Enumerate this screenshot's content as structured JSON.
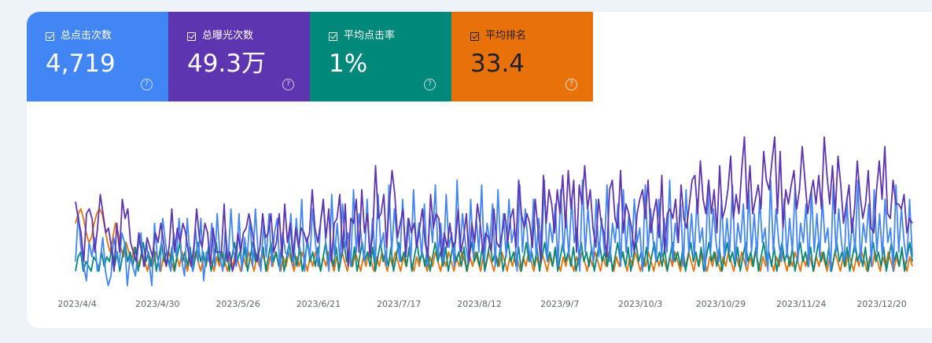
{
  "metrics": [
    {
      "label": "总点击次数",
      "value": "4,719",
      "color": "#4285f4"
    },
    {
      "label": "总曝光次数",
      "value": "49.3万",
      "color": "#5e35b1"
    },
    {
      "label": "平均点击率",
      "value": "1%",
      "color": "#00897b"
    },
    {
      "label": "平均排名",
      "value": "33.4",
      "color": "#e8710a"
    }
  ],
  "help_glyph": "?",
  "chart_data": {
    "type": "line",
    "x_tick_labels": [
      "2023/4/4",
      "2023/4/30",
      "2023/5/26",
      "2023/6/21",
      "2023/7/17",
      "2023/8/12",
      "2023/9/7",
      "2023/10/3",
      "2023/10/29",
      "2023/11/24",
      "2023/12/20"
    ],
    "x_range": [
      "2023/4/4",
      "2023/12/31"
    ],
    "grid": false,
    "series": [
      {
        "name": "总曝光次数",
        "color": "#5e35b1",
        "values": [
          65,
          58,
          52,
          40,
          60,
          62,
          58,
          44,
          54,
          68,
          60,
          52,
          54,
          46,
          36,
          56,
          44,
          66,
          58,
          62,
          48,
          44,
          40,
          52,
          44,
          38,
          50,
          46,
          42,
          52,
          48,
          56,
          48,
          38,
          46,
          62,
          44,
          54,
          48,
          56,
          52,
          44,
          38,
          46,
          62,
          50,
          46,
          56,
          52,
          38,
          54,
          44,
          44,
          44,
          64,
          40,
          44,
          36,
          40,
          52,
          44,
          52,
          54,
          60,
          54,
          46,
          40,
          46,
          60,
          50,
          52,
          60,
          44,
          48,
          60,
          42,
          64,
          48,
          56,
          42,
          54,
          46,
          54,
          52,
          48,
          52,
          70,
          54,
          48,
          56,
          66,
          50,
          62,
          40,
          56,
          58,
          68,
          44,
          64,
          38,
          58,
          56,
          66,
          44,
          70,
          52,
          60,
          42,
          52,
          80,
          58,
          60,
          68,
          46,
          64,
          78,
          68,
          50,
          56,
          62,
          42,
          58,
          52,
          56,
          46,
          54,
          62,
          48,
          42,
          68,
          54,
          60,
          58,
          42,
          52,
          46,
          56,
          46,
          48,
          62,
          44,
          50,
          60,
          40,
          56,
          48,
          64,
          56,
          44,
          52,
          50,
          44,
          62,
          48,
          46,
          52,
          60,
          48,
          58,
          62,
          46,
          74,
          60,
          54,
          60,
          56,
          46,
          66,
          54,
          40,
          76,
          56,
          70,
          64,
          52,
          70,
          60,
          76,
          54,
          78,
          62,
          74,
          44,
          72,
          64,
          80,
          62,
          70,
          54,
          46,
          66,
          56,
          52,
          42,
          70,
          74,
          58,
          54,
          78,
          52,
          64,
          60,
          54,
          44,
          60,
          66,
          70,
          58,
          74,
          52,
          60,
          66,
          50,
          76,
          44,
          60,
          62,
          58,
          66,
          48,
          72,
          58,
          54,
          64,
          74,
          76,
          60,
          82,
          66,
          60,
          74,
          60,
          70,
          52,
          80,
          58,
          62,
          70,
          84,
          58,
          68,
          60,
          78,
          92,
          62,
          80,
          60,
          66,
          72,
          62,
          86,
          74,
          70,
          82,
          92,
          60,
          86,
          54,
          70,
          64,
          72,
          78,
          62,
          70,
          88,
          74,
          60,
          68,
          74,
          64,
          76,
          62,
          92,
          76,
          64,
          80,
          60,
          84,
          72,
          56,
          64,
          72,
          52,
          62,
          82,
          68,
          58,
          64,
          78,
          54,
          52,
          70,
          82,
          66,
          88,
          60,
          58,
          74,
          64,
          64,
          62,
          68,
          52,
          58,
          56
        ],
        "y_scale": {
          "min": 30,
          "max": 95
        }
      },
      {
        "name": "总点击次数",
        "color": "#4285f4",
        "values": [
          40,
          60,
          46,
          38,
          32,
          48,
          42,
          50,
          36,
          40,
          50,
          36,
          30,
          34,
          50,
          44,
          38,
          52,
          48,
          30,
          42,
          38,
          34,
          46,
          52,
          38,
          48,
          40,
          30,
          56,
          42,
          36,
          58,
          48,
          40,
          36,
          52,
          42,
          58,
          40,
          34,
          58,
          42,
          36,
          54,
          40,
          58,
          32,
          44,
          40,
          56,
          38,
          60,
          42,
          36,
          54,
          40,
          62,
          44,
          38,
          60,
          36,
          50,
          42,
          58,
          38,
          62,
          44,
          36,
          56,
          42,
          60,
          38,
          52,
          58,
          36,
          52,
          44,
          42,
          60,
          38,
          58,
          44,
          66,
          36,
          50,
          42,
          62,
          48,
          38,
          58,
          64,
          44,
          36,
          68,
          42,
          56,
          40,
          64,
          46,
          52,
          38,
          70,
          44,
          60,
          48,
          40,
          66,
          42,
          58,
          40,
          68,
          46,
          52,
          38,
          72,
          44,
          62,
          48,
          40,
          66,
          44,
          58,
          40,
          70,
          46,
          56,
          42,
          64,
          38,
          60,
          48,
          72,
          42,
          56,
          40,
          68,
          46,
          52,
          38,
          74,
          44,
          60,
          48,
          40,
          66,
          42,
          58,
          44,
          72,
          40,
          56,
          48,
          64,
          38,
          70,
          44,
          60,
          42,
          66,
          48,
          54,
          36,
          72,
          44,
          62,
          48,
          40,
          66,
          42,
          58,
          44,
          74,
          40,
          56,
          48,
          64,
          38,
          70,
          44,
          60,
          42,
          66,
          48,
          54,
          36,
          74,
          44,
          62,
          48,
          40,
          66,
          42,
          58,
          44,
          72,
          40,
          56,
          48,
          64,
          38,
          70,
          44,
          60,
          42,
          66,
          48,
          54,
          36,
          72,
          44,
          62,
          48,
          40,
          66,
          42,
          58,
          44,
          74,
          40,
          56,
          48,
          64,
          38,
          70,
          44,
          60,
          42,
          66,
          48,
          54,
          36,
          72,
          44,
          62,
          48,
          40,
          66,
          42,
          58,
          44,
          72,
          40,
          56,
          48,
          64,
          38,
          70,
          44,
          60,
          42,
          66,
          48,
          54,
          36,
          74,
          44,
          62,
          48,
          40,
          66,
          42,
          58,
          44,
          72,
          40,
          56,
          48,
          64,
          38,
          70,
          44,
          60,
          42,
          66,
          48,
          54,
          36,
          72,
          44,
          62,
          48,
          40,
          66,
          42,
          58,
          44,
          74,
          40,
          56,
          48,
          64,
          38,
          70,
          44,
          60,
          42,
          66,
          48,
          54,
          36,
          72,
          44,
          62,
          48,
          40,
          66,
          42
        ],
        "y_scale": {
          "min": 30,
          "max": 95
        }
      },
      {
        "name": "平均点击率",
        "color": "#00897b",
        "values": [
          36,
          42,
          44,
          36,
          40,
          38,
          36,
          42,
          40,
          36,
          44,
          38,
          42,
          40,
          46,
          38,
          44,
          36,
          42,
          48,
          40,
          44,
          38,
          46,
          36,
          42,
          48,
          40,
          44,
          38,
          46,
          36,
          42,
          48,
          40,
          44,
          38,
          46,
          36,
          42,
          48,
          40,
          44,
          38,
          46,
          36,
          42,
          48,
          40,
          44,
          38,
          46,
          36,
          42,
          48,
          40,
          44,
          38,
          46,
          36,
          42,
          48,
          40,
          44,
          38,
          46,
          36,
          42,
          48,
          40,
          44,
          38,
          46,
          36,
          42,
          48,
          40,
          44,
          38,
          46,
          36,
          42,
          48,
          40,
          44,
          38,
          46,
          36,
          42,
          48,
          40,
          44,
          38,
          46,
          36,
          42,
          48,
          40,
          44,
          38,
          46,
          36,
          42,
          48,
          40,
          44,
          38,
          46,
          36,
          42,
          48,
          40,
          44,
          38,
          46,
          36,
          42,
          48,
          40,
          44,
          38,
          46,
          36,
          42,
          48,
          40,
          44,
          38,
          46,
          36,
          42,
          48,
          40,
          44,
          38,
          46,
          36,
          42,
          48,
          40,
          44,
          38,
          46,
          36,
          42,
          48,
          40,
          44,
          38,
          46,
          36,
          42,
          48,
          40,
          44,
          38,
          46,
          36,
          42,
          48,
          40,
          44,
          38,
          46,
          36,
          42,
          48,
          40,
          44,
          38,
          46,
          36,
          42,
          48,
          40,
          44,
          38,
          46,
          36,
          42,
          48,
          40,
          44,
          38,
          46,
          36,
          42,
          48,
          40,
          44,
          38,
          46,
          36,
          42,
          48,
          40,
          44,
          38,
          46,
          36,
          42,
          48,
          40,
          44,
          38,
          46,
          36,
          42,
          48,
          40,
          44,
          38,
          46,
          36,
          42,
          48,
          40,
          44,
          38,
          46,
          36,
          42,
          48,
          40,
          44,
          38,
          46,
          36,
          42,
          48,
          40,
          44,
          38,
          46,
          36,
          42,
          48,
          40,
          44,
          38,
          46,
          36,
          42,
          48,
          40,
          44,
          38,
          46,
          36,
          42,
          48,
          40,
          44,
          38,
          46,
          36,
          42,
          48,
          40,
          44,
          38,
          46,
          36,
          42,
          48,
          40,
          44,
          38,
          46,
          36,
          42,
          48,
          40,
          44,
          38,
          46,
          36,
          42,
          48,
          40,
          44,
          38,
          46,
          36,
          42,
          48,
          40,
          44,
          38,
          46,
          36,
          42,
          48,
          40,
          44,
          38,
          46,
          36,
          42,
          48,
          40,
          44,
          38,
          46,
          36,
          42,
          48,
          40,
          44,
          38,
          46,
          36,
          42,
          48,
          40,
          44,
          38,
          46,
          36,
          42,
          48,
          40
        ],
        "y_scale": {
          "min": 30,
          "max": 95
        }
      },
      {
        "name": "平均排名",
        "color": "#e8710a",
        "values": [
          56,
          60,
          62,
          58,
          52,
          48,
          50,
          56,
          60,
          62,
          60,
          54,
          48,
          44,
          50,
          56,
          52,
          46,
          42,
          48,
          44,
          40,
          46,
          42,
          38,
          44,
          40,
          36,
          42,
          38,
          44,
          40,
          36,
          42,
          38,
          44,
          40,
          36,
          42,
          38,
          44,
          40,
          36,
          42,
          38,
          44,
          40,
          36,
          42,
          38,
          44,
          40,
          36,
          42,
          38,
          44,
          40,
          36,
          42,
          38,
          44,
          40,
          36,
          42,
          38,
          44,
          40,
          36,
          42,
          38,
          44,
          40,
          36,
          42,
          38,
          44,
          40,
          36,
          42,
          38,
          44,
          40,
          36,
          42,
          38,
          44,
          40,
          36,
          42,
          38,
          44,
          40,
          36,
          42,
          38,
          44,
          40,
          36,
          42,
          38,
          44,
          40,
          36,
          42,
          38,
          44,
          40,
          36,
          42,
          38,
          44,
          40,
          36,
          42,
          38,
          44,
          40,
          36,
          42,
          38,
          44,
          40,
          36,
          42,
          38,
          44,
          40,
          36,
          42,
          38,
          44,
          40,
          36,
          42,
          38,
          44,
          40,
          36,
          42,
          38,
          44,
          40,
          36,
          42,
          38,
          44,
          40,
          36,
          42,
          38,
          44,
          40,
          36,
          42,
          38,
          44,
          40,
          36,
          42,
          38,
          44,
          40,
          36,
          42,
          38,
          44,
          40,
          36,
          42,
          38,
          44,
          40,
          36,
          42,
          38,
          44,
          40,
          36,
          42,
          38,
          44,
          40,
          36,
          42,
          38,
          44,
          40,
          36,
          42,
          38,
          44,
          40,
          36,
          42,
          38,
          44,
          40,
          36,
          42,
          38,
          44,
          40,
          36,
          42,
          38,
          44,
          40,
          36,
          42,
          38,
          44,
          40,
          36,
          42,
          38,
          44,
          40,
          36,
          42,
          38,
          44,
          40,
          36,
          42,
          38,
          44,
          40,
          36,
          42,
          38,
          44,
          40,
          36,
          42,
          38,
          44,
          40,
          36,
          42,
          38,
          44,
          40,
          36,
          42,
          38,
          44,
          40,
          36,
          42,
          38,
          44,
          40,
          36,
          42,
          38,
          44,
          40,
          36,
          42,
          38,
          44,
          40,
          36,
          42,
          38,
          44,
          40,
          36,
          42,
          38,
          44,
          40,
          36,
          42,
          38,
          44,
          40,
          36,
          42,
          38,
          44,
          40,
          36,
          42,
          38,
          44,
          40,
          36,
          42,
          38,
          44,
          40,
          36,
          42,
          38,
          44,
          40,
          36,
          42,
          38,
          44,
          40,
          36,
          42,
          38,
          44,
          40,
          36,
          42,
          38,
          44,
          40,
          36,
          42,
          38
        ],
        "y_scale": {
          "min": 30,
          "max": 95
        }
      }
    ]
  }
}
